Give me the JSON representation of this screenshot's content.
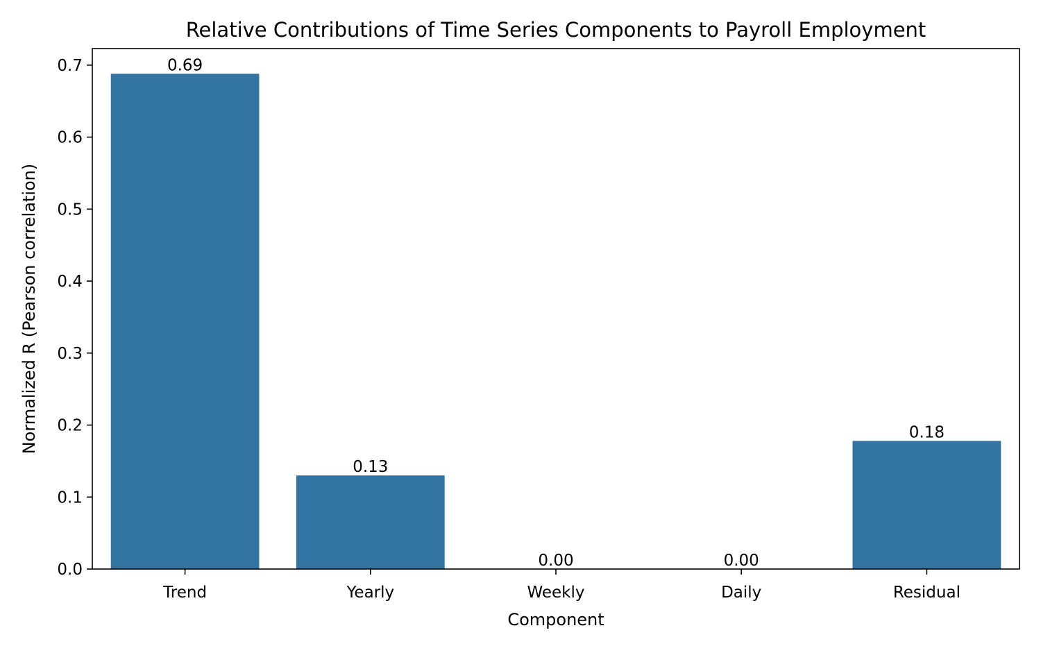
{
  "chart_data": {
    "type": "bar",
    "title": "Relative Contributions of Time Series Components to Payroll Employment",
    "xlabel": "Component",
    "ylabel": "Normalized R (Pearson correlation)",
    "categories": [
      "Trend",
      "Yearly",
      "Weekly",
      "Daily",
      "Residual"
    ],
    "values": [
      0.688,
      0.13,
      0.0,
      0.0,
      0.178
    ],
    "data_labels": [
      "0.69",
      "0.13",
      "0.00",
      "0.00",
      "0.18"
    ],
    "ylim": [
      0,
      0.723
    ],
    "yticks": [
      0.0,
      0.1,
      0.2,
      0.3,
      0.4,
      0.5,
      0.6,
      0.7
    ],
    "ytick_labels": [
      "0.0",
      "0.1",
      "0.2",
      "0.3",
      "0.4",
      "0.5",
      "0.6",
      "0.7"
    ],
    "grid": false,
    "legend": "none",
    "colors": {
      "bar": "#3274a1",
      "axes": "#000000",
      "background": "#ffffff"
    }
  }
}
